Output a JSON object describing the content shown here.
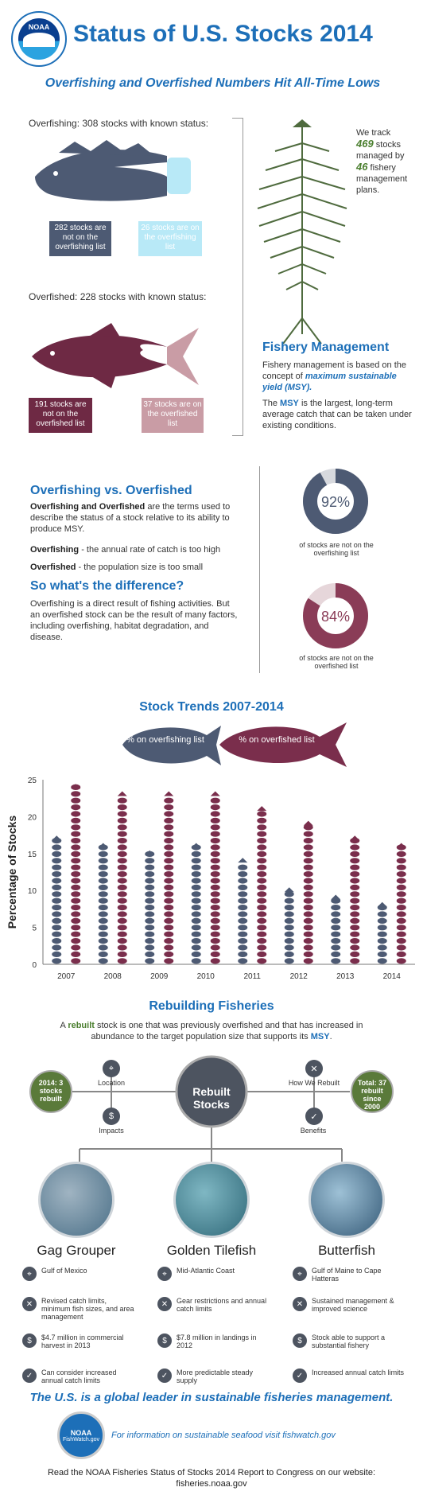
{
  "header": {
    "logo_text": "NOAA",
    "title": "Status of U.S. Stocks 2014",
    "subtitle": "Overfishing and Overfished Numbers Hit All-Time Lows"
  },
  "overfishing": {
    "heading": "Overfishing: 308 stocks with known status:",
    "not_listed": "282 stocks are not on the overfishing list",
    "listed": "26 stocks are on the overfishing list"
  },
  "overfished": {
    "heading": "Overfished: 228 stocks with known status:",
    "not_listed": "191 stocks are not on the overfished list",
    "listed": "37 stocks are on the overfished list"
  },
  "track": {
    "line1": "We track",
    "stocks": "469",
    "line2": "stocks managed by",
    "plans": "46",
    "line3": "fishery management plans."
  },
  "fishery_management": {
    "title": "Fishery Management",
    "para1_a": "Fishery management is based on the concept of",
    "para1_b": "maximum sustainable yield (MSY).",
    "para2_a": "The",
    "para2_msy": "MSY",
    "para2_b": "is the largest, long-term average catch that can be taken under existing conditions."
  },
  "vs": {
    "title": "Overfishing vs. Overfished",
    "def_bold": "Overfishing and Overfished",
    "def_rest": "are the terms used to describe the status of a stock relative to its ability to produce MSY.",
    "overfishing_bold": "Overfishing",
    "overfishing_rest": "- the annual rate of catch is too high",
    "overfished_bold": "Overfished",
    "overfished_rest": "- the population size is too small",
    "diff_title": "So what's the difference?",
    "diff_text": "Overfishing is a direct result of fishing activities. But an overfished stock can be the result of many factors, including overfishing, habitat degradation, and disease."
  },
  "donuts": [
    {
      "value_label": "92%",
      "value": 92,
      "caption": "of stocks are not on the overfishing list",
      "color": "#4d5a73"
    },
    {
      "value_label": "84%",
      "value": 84,
      "caption": "of stocks are not on the overfished list",
      "color": "#8a3c57"
    }
  ],
  "chart_data": {
    "type": "bar",
    "title": "Stock Trends 2007-2014",
    "ylabel": "Percentage of Stocks",
    "xlabel": "",
    "ylim": [
      0,
      25
    ],
    "yticks": [
      0,
      5,
      10,
      15,
      20,
      25
    ],
    "categories": [
      "2007",
      "2008",
      "2009",
      "2010",
      "2011",
      "2012",
      "2013",
      "2014"
    ],
    "series": [
      {
        "name": "% on overfishing list",
        "color": "#4d5a73",
        "values": [
          17,
          16,
          15,
          16,
          14,
          10,
          9,
          8
        ]
      },
      {
        "name": "% on overfished list",
        "color": "#7a2e4c",
        "values": [
          24,
          23,
          23,
          23,
          21,
          19,
          17,
          16
        ]
      }
    ],
    "grid": false,
    "legend_position": "top"
  },
  "rebuilding": {
    "title": "Rebuilding Fisheries",
    "intro_a": "A",
    "intro_rebuilt": "rebuilt",
    "intro_b": "stock is one that was previously overfished and that has increased in abundance to the target population size that supports its",
    "intro_msy": "MSY",
    "intro_end": ".",
    "hub": "Rebuilt Stocks",
    "left_stat": "2014: 3 stocks rebuilt",
    "right_stat": "Total: 37 rebuilt since 2000",
    "nodes": {
      "location": "Location",
      "impacts": "Impacts",
      "how": "How We Rebuilt",
      "benefits": "Benefits"
    }
  },
  "cards": [
    {
      "name": "Gag Grouper",
      "location": "Gulf of Mexico",
      "how": "Revised catch limits, minimum fish sizes, and area management",
      "impact": "$4.7 million in commercial harvest in 2013",
      "benefit": "Can consider increased annual catch limits"
    },
    {
      "name": "Golden Tilefish",
      "location": "Mid-Atlantic Coast",
      "how": "Gear restrictions and annual catch limits",
      "impact": "$7.8 million in landings in 2012",
      "benefit": "More predictable steady supply"
    },
    {
      "name": "Butterfish",
      "location": "Gulf of Maine to Cape Hatteras",
      "how": "Sustained management & improved science",
      "impact": "Stock able to support a substantial fishery",
      "benefit": "Increased annual catch limits"
    }
  ],
  "footer": {
    "lead": "The U.S. is a global leader in sustainable fisheries management.",
    "badge_top": "NOAA",
    "badge_bottom": "FishWatch.gov",
    "link_text": "For information on sustainable seafood visit fishwatch.gov",
    "bottom_line1": "Read the NOAA Fisheries Status of Stocks 2014 Report to Congress on our website:",
    "bottom_line2": "fisheries.noaa.gov"
  }
}
